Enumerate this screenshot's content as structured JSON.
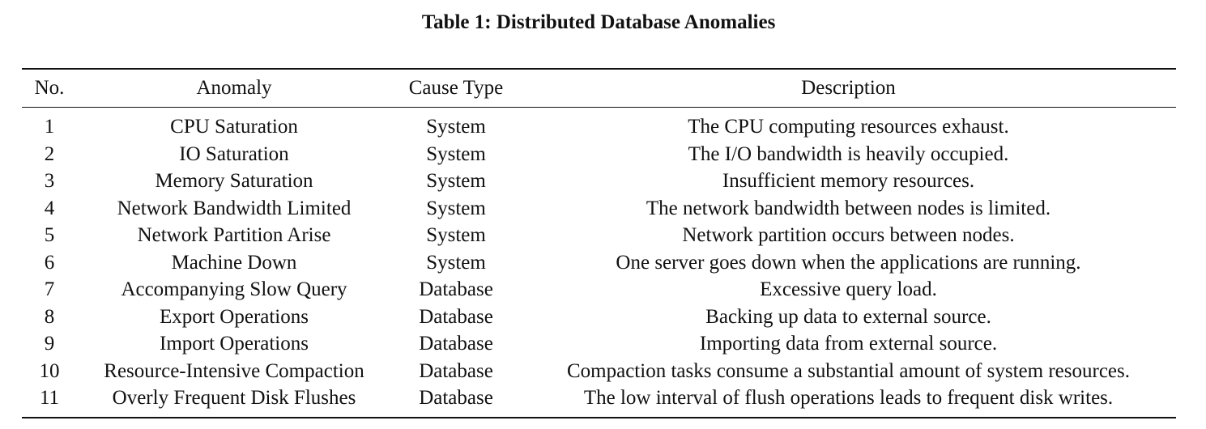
{
  "caption": "Table 1: Distributed Database Anomalies",
  "table": {
    "headers": [
      "No.",
      "Anomaly",
      "Cause Type",
      "Description"
    ],
    "rows": [
      [
        "1",
        "CPU Saturation",
        "System",
        "The CPU computing resources exhaust."
      ],
      [
        "2",
        "IO Saturation",
        "System",
        "The I/O bandwidth is heavily occupied."
      ],
      [
        "3",
        "Memory Saturation",
        "System",
        "Insufficient memory resources."
      ],
      [
        "4",
        "Network Bandwidth Limited",
        "System",
        "The network bandwidth between nodes is limited."
      ],
      [
        "5",
        "Network Partition Arise",
        "System",
        "Network partition occurs between nodes."
      ],
      [
        "6",
        "Machine Down",
        "System",
        "One server goes down when the applications are running."
      ],
      [
        "7",
        "Accompanying Slow Query",
        "Database",
        "Excessive query load."
      ],
      [
        "8",
        "Export Operations",
        "Database",
        "Backing up data to external source."
      ],
      [
        "9",
        "Import Operations",
        "Database",
        "Importing data from external source."
      ],
      [
        "10",
        "Resource-Intensive Compaction",
        "Database",
        "Compaction tasks consume a substantial amount of system resources."
      ],
      [
        "11",
        "Overly Frequent Disk Flushes",
        "Database",
        "The low interval of flush operations leads to frequent disk writes."
      ]
    ]
  }
}
